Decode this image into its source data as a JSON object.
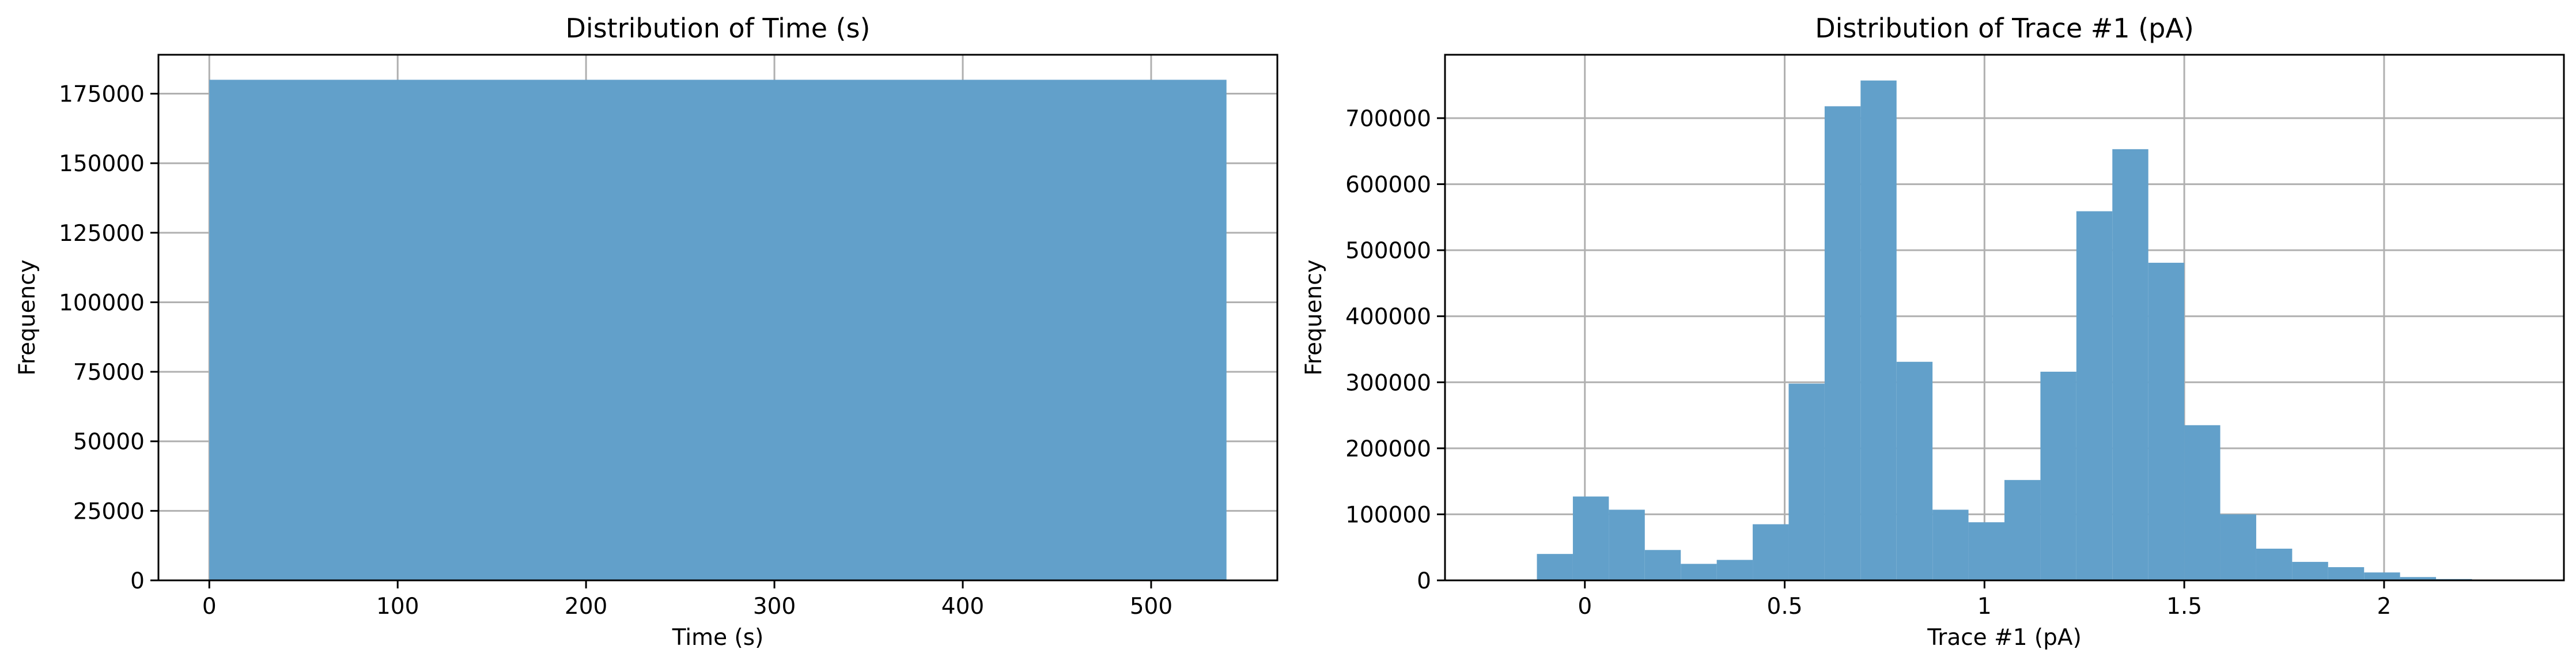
{
  "chart_data": [
    {
      "type": "bar",
      "title": "Distribution of Time (s)",
      "xlabel": "Time (s)",
      "ylabel": "Frequency",
      "xlim": [
        -27,
        567
      ],
      "ylim": [
        0,
        189000
      ],
      "xticks": [
        0,
        100,
        200,
        300,
        400,
        500
      ],
      "yticks": [
        0,
        25000,
        50000,
        75000,
        100000,
        125000,
        150000,
        175000
      ],
      "grid": true,
      "bin_edges": [
        0,
        540
      ],
      "counts": [
        180000
      ],
      "color": "#62a0ca"
    },
    {
      "type": "bar",
      "title": "Distribution of Trace #1 (pA)",
      "xlabel": "Trace #1 (pA)",
      "ylabel": "Frequency",
      "xlim": [
        -0.35,
        2.45
      ],
      "ylim": [
        0,
        796000
      ],
      "xticks": [
        0.0,
        0.5,
        1.0,
        1.5,
        2.0
      ],
      "yticks": [
        0,
        100000,
        200000,
        300000,
        400000,
        500000,
        600000,
        700000
      ],
      "grid": true,
      "bin_edges": [
        -0.12,
        -0.03,
        0.06,
        0.15,
        0.24,
        0.33,
        0.42,
        0.51,
        0.6,
        0.69,
        0.78,
        0.87,
        0.96,
        1.05,
        1.14,
        1.23,
        1.32,
        1.41,
        1.5,
        1.59,
        1.68,
        1.77,
        1.86,
        1.95,
        2.04,
        2.13,
        2.22,
        2.31
      ],
      "counts": [
        40000,
        127000,
        107000,
        46000,
        25000,
        31000,
        85000,
        298000,
        718000,
        757000,
        331000,
        107000,
        88000,
        152000,
        316000,
        559000,
        653000,
        481000,
        235000,
        100000,
        48000,
        28000,
        20000,
        12000,
        5000,
        2000,
        1000
      ],
      "color": "#62a0ca"
    }
  ]
}
